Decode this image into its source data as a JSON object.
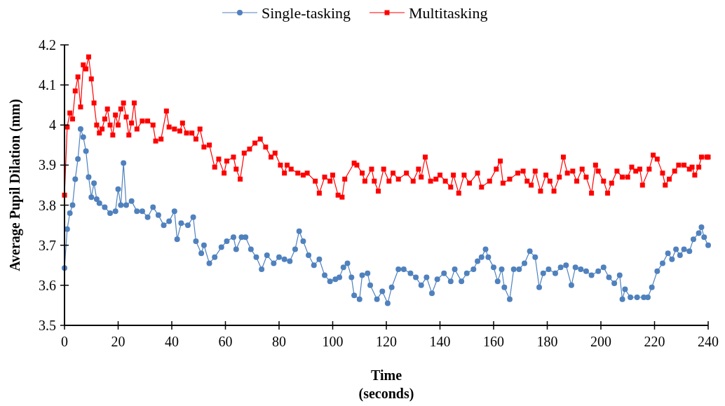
{
  "chart_data": {
    "type": "line",
    "xlabel": "Time\n(seconds)",
    "ylabel": "Average Pupil Dilation (mm)",
    "xlim": [
      0,
      240
    ],
    "xticks": [
      0,
      20,
      40,
      60,
      80,
      100,
      120,
      140,
      160,
      180,
      200,
      220,
      240
    ],
    "ylim": [
      3.5,
      4.2
    ],
    "yticks": [
      3.5,
      3.6,
      3.7,
      3.8,
      3.9,
      4,
      4.1,
      4.2
    ],
    "grid": false,
    "legend": "top",
    "line_style": "solid",
    "series": [
      {
        "name": "Single-tasking",
        "color": "#4f81bd",
        "marker": "circle",
        "x": [
          0,
          1,
          2,
          3,
          4,
          5,
          6,
          7,
          8,
          9,
          10,
          11,
          12,
          13,
          15,
          17,
          19,
          20,
          21,
          22,
          23,
          25,
          27,
          29,
          31,
          33,
          35,
          37,
          39,
          41,
          42,
          43.5,
          46,
          48,
          49,
          51,
          52,
          54,
          56,
          58.5,
          60.5,
          63,
          64,
          66,
          67.5,
          69.5,
          71.5,
          73.5,
          75.5,
          78,
          80,
          82,
          84,
          86,
          87.5,
          89,
          91,
          93,
          95,
          97,
          99,
          101,
          102.5,
          104,
          105.5,
          107,
          108,
          110,
          111,
          113,
          114,
          116.5,
          118.5,
          120.5,
          122,
          124.5,
          126.5,
          129,
          131,
          133,
          135,
          137,
          139,
          141.5,
          144,
          145.5,
          148,
          150,
          152.5,
          154,
          155.5,
          157,
          158,
          160,
          161.5,
          163,
          164,
          166,
          167.5,
          169.5,
          171.5,
          173.5,
          175.5,
          177,
          178.5,
          180.5,
          183,
          185,
          187,
          189,
          190.5,
          192.5,
          194.5,
          196.5,
          199,
          201,
          203,
          205,
          207,
          208,
          209,
          211,
          213.5,
          216,
          217.5,
          219,
          221,
          223,
          225,
          226.5,
          228,
          229.5,
          231,
          233,
          234.5,
          236.5,
          237.5,
          238.5,
          240
        ],
        "values": [
          3.643,
          3.74,
          3.78,
          3.8,
          3.865,
          3.915,
          3.99,
          3.97,
          3.935,
          3.87,
          3.82,
          3.855,
          3.815,
          3.805,
          3.795,
          3.78,
          3.785,
          3.84,
          3.8,
          3.905,
          3.8,
          3.81,
          3.785,
          3.785,
          3.77,
          3.795,
          3.775,
          3.75,
          3.76,
          3.785,
          3.715,
          3.755,
          3.75,
          3.77,
          3.71,
          3.68,
          3.7,
          3.655,
          3.67,
          3.695,
          3.71,
          3.72,
          3.69,
          3.72,
          3.72,
          3.69,
          3.67,
          3.64,
          3.675,
          3.655,
          3.67,
          3.665,
          3.66,
          3.69,
          3.735,
          3.71,
          3.675,
          3.65,
          3.665,
          3.625,
          3.61,
          3.615,
          3.62,
          3.645,
          3.655,
          3.62,
          3.575,
          3.565,
          3.625,
          3.63,
          3.6,
          3.565,
          3.585,
          3.555,
          3.595,
          3.64,
          3.64,
          3.63,
          3.62,
          3.6,
          3.62,
          3.58,
          3.615,
          3.63,
          3.61,
          3.64,
          3.61,
          3.63,
          3.64,
          3.66,
          3.67,
          3.69,
          3.67,
          3.645,
          3.61,
          3.64,
          3.595,
          3.565,
          3.64,
          3.64,
          3.655,
          3.685,
          3.67,
          3.595,
          3.63,
          3.64,
          3.63,
          3.645,
          3.65,
          3.6,
          3.645,
          3.64,
          3.635,
          3.625,
          3.635,
          3.645,
          3.62,
          3.605,
          3.625,
          3.565,
          3.59,
          3.57,
          3.57,
          3.57,
          3.57,
          3.595,
          3.635,
          3.655,
          3.68,
          3.665,
          3.69,
          3.675,
          3.69,
          3.685,
          3.715,
          3.73,
          3.745,
          3.72,
          3.7
        ]
      },
      {
        "name": "Multitasking",
        "color": "#ff0000",
        "marker": "square",
        "x": [
          0,
          1,
          2,
          3,
          4,
          5,
          6,
          7,
          8,
          9,
          10,
          11,
          12,
          13,
          14,
          15,
          16,
          17,
          18,
          19,
          20,
          21,
          22,
          23,
          24,
          25,
          26,
          27,
          29,
          31,
          33,
          34,
          36,
          38,
          39,
          41,
          43,
          44,
          45.5,
          47.5,
          49,
          50.5,
          52,
          54,
          56,
          57.5,
          59.5,
          60.5,
          63,
          64,
          65.5,
          67,
          69,
          71,
          73,
          75,
          77,
          78.5,
          80.5,
          82,
          83,
          84.5,
          87,
          89,
          90.5,
          93.5,
          95,
          97,
          99,
          100,
          102,
          103.5,
          104.5,
          108,
          109,
          111,
          112,
          114.5,
          115.5,
          117,
          119,
          121,
          122.5,
          124.5,
          127.5,
          130,
          132,
          133,
          134.5,
          136.5,
          138.5,
          140,
          142,
          144,
          145,
          147,
          149,
          151,
          154,
          155.5,
          158.5,
          161,
          162.5,
          163.5,
          166,
          169,
          171,
          172.5,
          174,
          175.5,
          177.5,
          179.5,
          181,
          182.5,
          184.5,
          186,
          187.5,
          189.5,
          191,
          193,
          194.5,
          196.5,
          198,
          199,
          201,
          202.5,
          204,
          206,
          208,
          210,
          211.5,
          213,
          214.5,
          215.5,
          218,
          219.5,
          221,
          223,
          224,
          225.5,
          227.5,
          229,
          231,
          233,
          234,
          235,
          236.5,
          237.5,
          239.5,
          240
        ],
        "values": [
          3.825,
          3.995,
          4.03,
          4.015,
          4.085,
          4.12,
          4.045,
          4.15,
          4.14,
          4.17,
          4.115,
          4.055,
          4,
          3.98,
          3.99,
          4.015,
          4.04,
          4,
          3.975,
          4.025,
          4,
          4.04,
          4.055,
          4.02,
          3.975,
          4.005,
          4.055,
          3.99,
          4.01,
          4.01,
          4,
          3.96,
          3.965,
          4.035,
          3.995,
          3.99,
          3.985,
          4.005,
          3.98,
          3.98,
          3.965,
          3.99,
          3.945,
          3.95,
          3.895,
          3.915,
          3.88,
          3.91,
          3.92,
          3.89,
          3.865,
          3.93,
          3.94,
          3.955,
          3.965,
          3.945,
          3.92,
          3.93,
          3.9,
          3.88,
          3.9,
          3.89,
          3.88,
          3.875,
          3.88,
          3.86,
          3.83,
          3.87,
          3.86,
          3.875,
          3.825,
          3.82,
          3.865,
          3.905,
          3.9,
          3.88,
          3.86,
          3.89,
          3.86,
          3.835,
          3.89,
          3.86,
          3.88,
          3.865,
          3.88,
          3.86,
          3.89,
          3.87,
          3.92,
          3.86,
          3.865,
          3.875,
          3.86,
          3.845,
          3.875,
          3.83,
          3.875,
          3.855,
          3.88,
          3.845,
          3.86,
          3.89,
          3.91,
          3.855,
          3.865,
          3.88,
          3.885,
          3.86,
          3.85,
          3.885,
          3.835,
          3.875,
          3.86,
          3.835,
          3.87,
          3.92,
          3.88,
          3.885,
          3.86,
          3.89,
          3.87,
          3.83,
          3.9,
          3.885,
          3.86,
          3.83,
          3.855,
          3.885,
          3.87,
          3.87,
          3.895,
          3.885,
          3.89,
          3.85,
          3.89,
          3.925,
          3.915,
          3.88,
          3.85,
          3.865,
          3.885,
          3.9,
          3.9,
          3.89,
          3.895,
          3.875,
          3.895,
          3.92,
          3.92,
          3.92
        ]
      }
    ]
  }
}
